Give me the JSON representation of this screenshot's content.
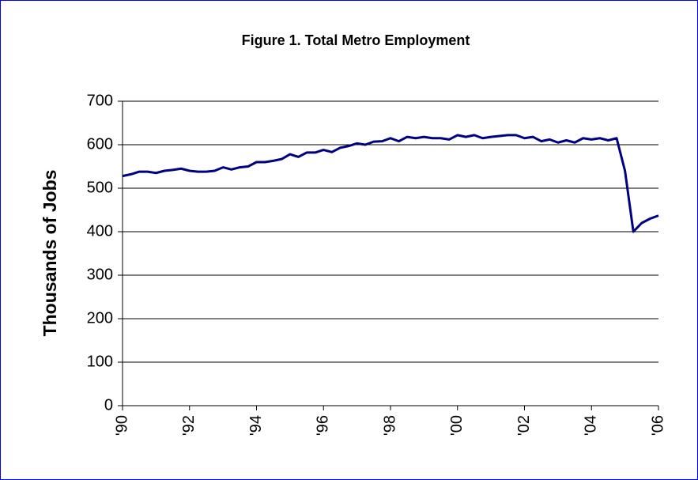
{
  "chart_data": {
    "type": "line",
    "title": "Figure 1. Total Metro Employment",
    "y_label": "Thousands of Jobs",
    "categories": [
      "'90",
      null,
      null,
      null,
      null,
      null,
      null,
      null,
      "'92",
      null,
      null,
      null,
      null,
      null,
      null,
      null,
      "'94",
      null,
      null,
      null,
      null,
      null,
      null,
      null,
      "'96",
      null,
      null,
      null,
      null,
      null,
      null,
      null,
      "'98",
      null,
      null,
      null,
      null,
      null,
      null,
      null,
      "'00",
      null,
      null,
      null,
      null,
      null,
      null,
      null,
      "'02",
      null,
      null,
      null,
      null,
      null,
      null,
      null,
      "'04",
      null,
      null,
      null,
      null,
      null,
      null,
      null,
      "'06"
    ],
    "values": [
      528,
      532,
      538,
      538,
      535,
      540,
      542,
      545,
      540,
      538,
      538,
      540,
      548,
      543,
      548,
      550,
      560,
      560,
      563,
      567,
      578,
      572,
      582,
      582,
      588,
      583,
      593,
      597,
      603,
      600,
      607,
      608,
      615,
      608,
      618,
      615,
      618,
      615,
      615,
      612,
      622,
      618,
      622,
      615,
      618,
      620,
      622,
      622,
      615,
      618,
      608,
      612,
      605,
      610,
      605,
      615,
      612,
      615,
      610,
      615,
      540,
      400,
      420,
      430,
      437
    ],
    "color": "#000080",
    "ylim": [
      0,
      700
    ],
    "yticks": [
      0,
      100,
      200,
      300,
      400,
      500,
      600,
      700
    ],
    "grid": true
  }
}
